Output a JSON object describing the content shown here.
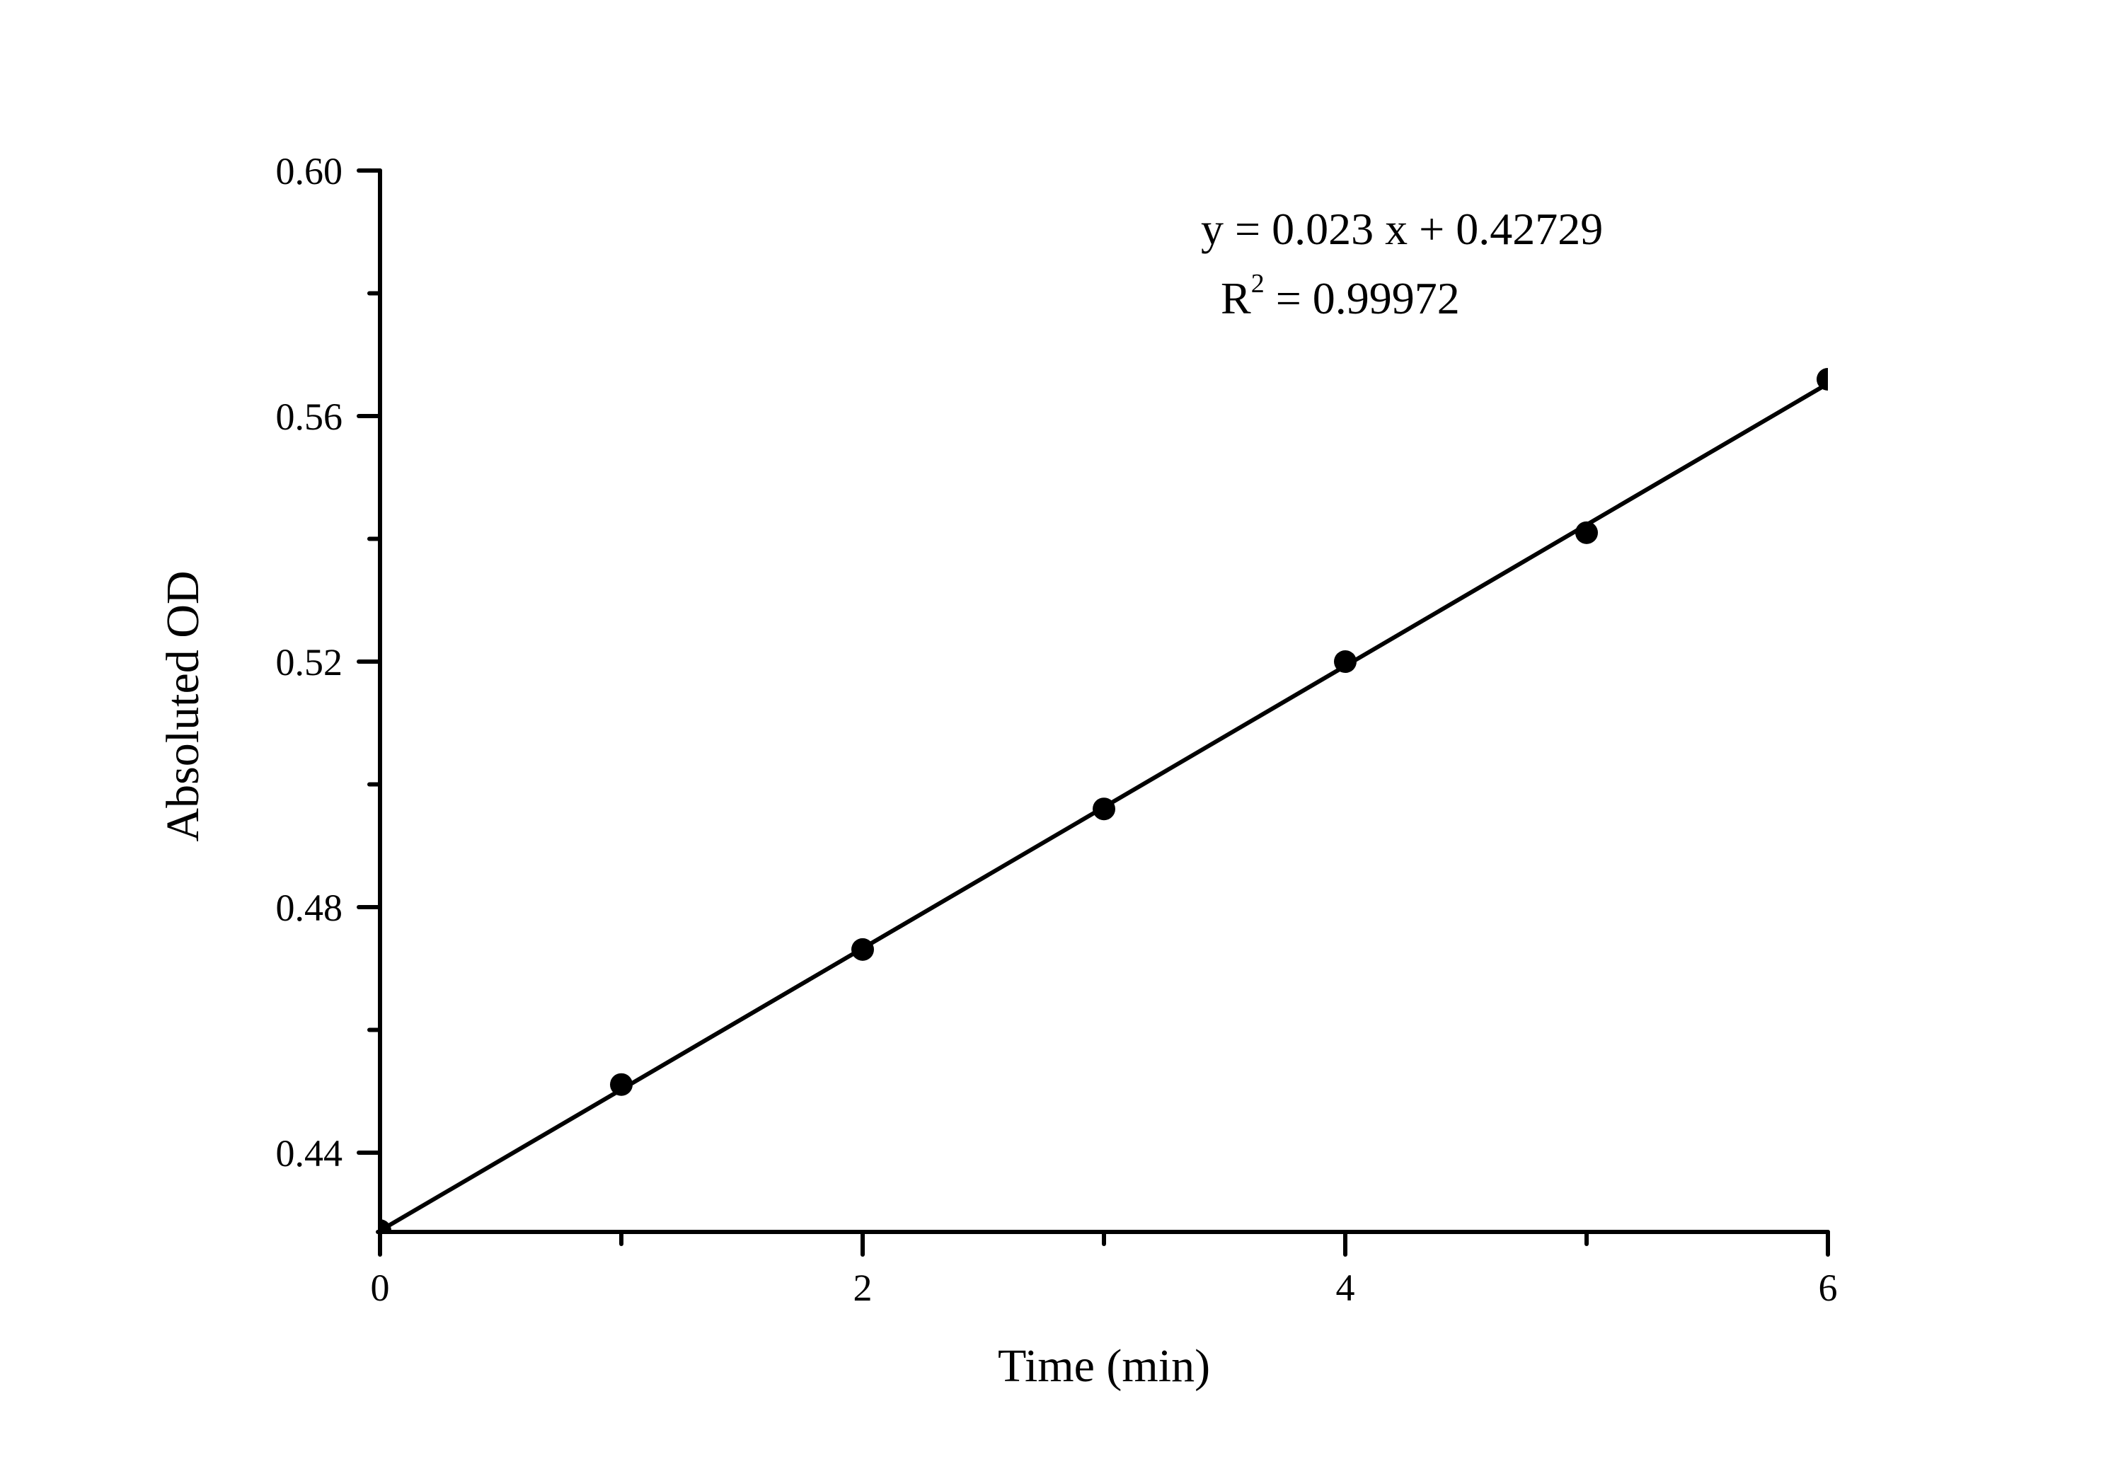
{
  "chart_data": {
    "type": "scatter",
    "title": "",
    "xlabel": "Time (min)",
    "ylabel": "Absoluted OD",
    "xlim": [
      0,
      6
    ],
    "ylim": [
      0.4271,
      0.6
    ],
    "grid": false,
    "legend": null,
    "x_ticks": [
      0,
      2,
      4,
      6
    ],
    "x_tick_labels": [
      "0",
      "2",
      "4",
      "6"
    ],
    "x_minor_ticks": [
      1,
      3,
      5
    ],
    "y_ticks": [
      0.44,
      0.48,
      0.52,
      0.56,
      0.6
    ],
    "y_tick_labels": [
      "0.44",
      "0.48",
      "0.52",
      "0.56",
      "0.60"
    ],
    "y_minor_ticks": [
      0.46,
      0.5,
      0.54,
      0.58
    ],
    "series": [
      {
        "name": "Absoluted OD",
        "kind": "scatter",
        "marker": "filled-circle",
        "color": "#000000",
        "x": [
          0,
          1,
          2,
          3,
          4,
          5,
          6
        ],
        "y": [
          0.4273,
          0.4511,
          0.4731,
          0.496,
          0.52,
          0.541,
          0.566
        ]
      },
      {
        "name": "Linear fit",
        "kind": "line",
        "color": "#000000",
        "slope": 0.023,
        "intercept": 0.42729,
        "x": [
          0,
          6
        ],
        "y": [
          0.42729,
          0.56529
        ]
      }
    ],
    "annotations": {
      "equation": "y = 0.023 x + 0.42729",
      "r_squared_prefix": "R",
      "r_squared_sup": "2",
      "r_squared_value": " = 0.99972"
    }
  }
}
